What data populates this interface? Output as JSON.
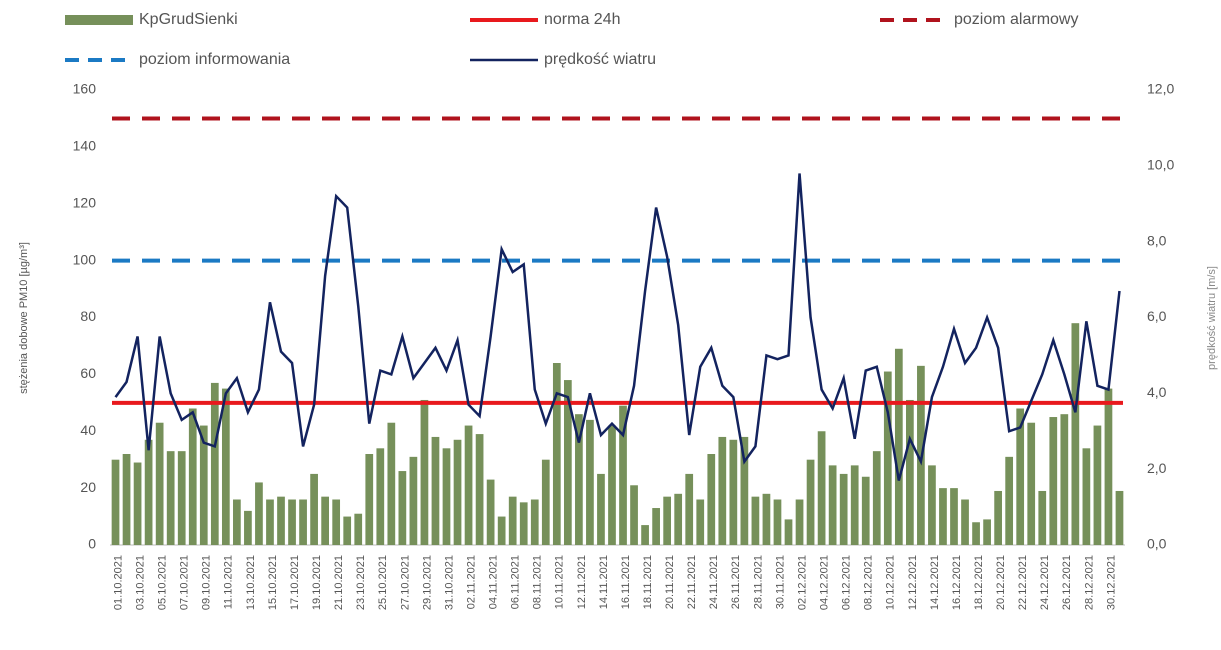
{
  "chart_data": {
    "type": "combo",
    "y_label": "stężenia dobowe PM10 [µg/m³]",
    "y2_label": "prędkość wiatru [m/s]",
    "categories": [
      "01.10.2021",
      null,
      "03.10.2021",
      null,
      "05.10.2021",
      null,
      "07.10.2021",
      null,
      "09.10.2021",
      null,
      "11.10.2021",
      null,
      "13.10.2021",
      null,
      "15.10.2021",
      null,
      "17.10.2021",
      null,
      "19.10.2021",
      null,
      "21.10.2021",
      null,
      "23.10.2021",
      null,
      "25.10.2021",
      null,
      "27.10.2021",
      null,
      "29.10.2021",
      null,
      "31.10.2021",
      null,
      "02.11.2021",
      null,
      "04.11.2021",
      null,
      "06.11.2021",
      null,
      "08.11.2021",
      null,
      "10.11.2021",
      null,
      "12.11.2021",
      null,
      "14.11.2021",
      null,
      "16.11.2021",
      null,
      "18.11.2021",
      null,
      "20.11.2021",
      null,
      "22.11.2021",
      null,
      "24.11.2021",
      null,
      "26.11.2021",
      null,
      "28.11.2021",
      null,
      "30.11.2021",
      null,
      "02.12.2021",
      null,
      "04.12.2021",
      null,
      "06.12.2021",
      null,
      "08.12.2021",
      null,
      "10.12.2021",
      null,
      "12.12.2021",
      null,
      "14.12.2021",
      null,
      "16.12.2021",
      null,
      "18.12.2021",
      null,
      "20.12.2021",
      null,
      "22.12.2021",
      null,
      "24.12.2021",
      null,
      "26.12.2021",
      null,
      "28.12.2021",
      null,
      "30.12.2021",
      null
    ],
    "series": [
      {
        "name": "KpGrudSienki",
        "kind": "bar",
        "color": "#76905a",
        "values": [
          30,
          32,
          29,
          37,
          43,
          33,
          33,
          48,
          42,
          57,
          55,
          16,
          12,
          22,
          16,
          17,
          16,
          16,
          25,
          17,
          16,
          10,
          11,
          32,
          34,
          43,
          26,
          31,
          51,
          38,
          34,
          37,
          42,
          39,
          23,
          10,
          17,
          15,
          16,
          30,
          64,
          58,
          46,
          44,
          25,
          42,
          49,
          21,
          7,
          13,
          17,
          18,
          25,
          16,
          32,
          38,
          37,
          38,
          17,
          18,
          16,
          9,
          16,
          30,
          40,
          28,
          25,
          28,
          24,
          33,
          61,
          69,
          51,
          63,
          28,
          20,
          20,
          16,
          8,
          9,
          19,
          31,
          48,
          43,
          19,
          45,
          46,
          78,
          34,
          42,
          55,
          19
        ]
      },
      {
        "name": "norma 24h",
        "kind": "hline",
        "color": "#e8191d",
        "dashed": false,
        "value": 50
      },
      {
        "name": "poziom alarmowy",
        "kind": "hline",
        "color": "#b0131d",
        "dashed": true,
        "value": 150
      },
      {
        "name": "poziom informowania",
        "kind": "hline",
        "color": "#1b7ac4",
        "dashed": true,
        "value": 100
      },
      {
        "name": "prędkość wiatru",
        "kind": "line",
        "color": "#13235f",
        "axis": "y2",
        "values": [
          3.9,
          4.3,
          5.5,
          2.5,
          5.5,
          4.0,
          3.3,
          3.5,
          2.7,
          2.6,
          4.0,
          4.4,
          3.5,
          4.1,
          6.4,
          5.1,
          4.8,
          2.6,
          3.7,
          7.1,
          9.2,
          8.9,
          6.3,
          3.2,
          4.6,
          4.5,
          5.5,
          4.4,
          4.8,
          5.2,
          4.6,
          5.4,
          3.7,
          3.4,
          5.5,
          7.8,
          7.2,
          7.4,
          4.1,
          3.2,
          4.0,
          3.9,
          2.7,
          4.0,
          2.9,
          3.2,
          2.9,
          4.2,
          6.7,
          8.9,
          7.6,
          5.8,
          2.9,
          4.7,
          5.2,
          4.2,
          3.9,
          2.2,
          2.6,
          5.0,
          4.9,
          5.0,
          9.8,
          6.0,
          4.1,
          3.6,
          4.4,
          2.8,
          4.6,
          4.7,
          3.5,
          1.7,
          2.8,
          2.2,
          3.9,
          4.7,
          5.7,
          4.8,
          5.2,
          6.0,
          5.2,
          3.0,
          3.1,
          3.8,
          4.5,
          5.4,
          4.5,
          3.5,
          5.9,
          4.2,
          4.1,
          6.7
        ]
      }
    ],
    "ylim": [
      0,
      160
    ],
    "yticks": [
      0,
      20,
      40,
      60,
      80,
      100,
      120,
      140,
      160
    ],
    "y2lim": [
      0,
      12
    ],
    "y2ticks": [
      {
        "value": 0,
        "label": "0,0"
      },
      {
        "value": 2,
        "label": "2,0"
      },
      {
        "value": 4,
        "label": "4,0"
      },
      {
        "value": 6,
        "label": "6,0"
      },
      {
        "value": 8,
        "label": "8,0"
      },
      {
        "value": 10,
        "label": "10,0"
      },
      {
        "value": 12,
        "label": "12,0"
      }
    ]
  }
}
